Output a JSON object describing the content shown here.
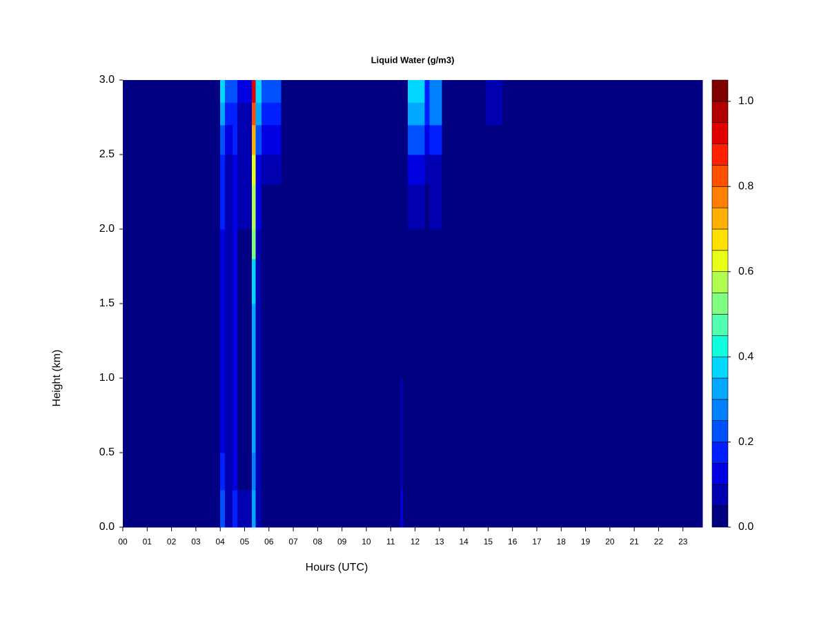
{
  "chart_data": {
    "type": "heatmap",
    "title": "Liquid Water (g/m3)",
    "x_label": "Hours (UTC)",
    "y_label": "Height (km)",
    "x": [
      0,
      4.0,
      4.2,
      4.5,
      4.7,
      5.3,
      5.45,
      5.7,
      6.5,
      11.4,
      11.5,
      11.7,
      12.4,
      12.6,
      13.1,
      14.9,
      15.6
    ],
    "y": [
      0,
      0.25,
      0.5,
      1.0,
      1.5,
      1.8,
      2.0,
      2.3,
      2.5,
      2.7,
      2.85
    ],
    "z": [
      [
        0.02,
        0.2,
        0.08,
        0.15,
        0.05,
        0.3,
        0.08,
        0.04,
        0.02,
        0.1,
        0.02,
        0.02,
        0.02,
        0.02,
        0.02,
        0.02,
        0.02
      ],
      [
        0.02,
        0.15,
        0.06,
        0.12,
        0.04,
        0.25,
        0.06,
        0.03,
        0.02,
        0.08,
        0.02,
        0.02,
        0.02,
        0.02,
        0.02,
        0.02,
        0.02
      ],
      [
        0.02,
        0.12,
        0.05,
        0.1,
        0.04,
        0.3,
        0.05,
        0.03,
        0.02,
        0.08,
        0.02,
        0.02,
        0.02,
        0.02,
        0.02,
        0.02,
        0.02
      ],
      [
        0.02,
        0.12,
        0.05,
        0.1,
        0.04,
        0.3,
        0.05,
        0.03,
        0.02,
        0.02,
        0.02,
        0.02,
        0.02,
        0.02,
        0.02,
        0.02,
        0.02
      ],
      [
        0.02,
        0.12,
        0.05,
        0.1,
        0.04,
        0.35,
        0.06,
        0.03,
        0.02,
        0.02,
        0.02,
        0.02,
        0.02,
        0.02,
        0.02,
        0.02,
        0.02
      ],
      [
        0.02,
        0.13,
        0.05,
        0.1,
        0.04,
        0.5,
        0.08,
        0.03,
        0.02,
        0.02,
        0.02,
        0.02,
        0.02,
        0.02,
        0.02,
        0.02,
        0.02
      ],
      [
        0.02,
        0.15,
        0.06,
        0.12,
        0.05,
        0.55,
        0.1,
        0.04,
        0.02,
        0.02,
        0.02,
        0.06,
        0.04,
        0.05,
        0.02,
        0.02,
        0.02
      ],
      [
        0.02,
        0.18,
        0.08,
        0.14,
        0.05,
        0.6,
        0.12,
        0.06,
        0.02,
        0.02,
        0.02,
        0.1,
        0.06,
        0.08,
        0.02,
        0.02,
        0.02
      ],
      [
        0.02,
        0.22,
        0.1,
        0.15,
        0.06,
        0.7,
        0.2,
        0.12,
        0.02,
        0.02,
        0.02,
        0.2,
        0.12,
        0.18,
        0.02,
        0.02,
        0.02
      ],
      [
        0.02,
        0.3,
        0.15,
        0.18,
        0.08,
        0.85,
        0.3,
        0.18,
        0.02,
        0.02,
        0.02,
        0.3,
        0.15,
        0.25,
        0.02,
        0.05,
        0.02
      ],
      [
        0.02,
        0.38,
        0.2,
        0.2,
        0.1,
        0.95,
        0.35,
        0.2,
        0.02,
        0.02,
        0.02,
        0.35,
        0.18,
        0.28,
        0.02,
        0.07,
        0.02
      ]
    ],
    "xlim": [
      0,
      23.8
    ],
    "ylim": [
      0,
      3
    ],
    "xticks": [
      {
        "value": 0,
        "label": "00"
      },
      {
        "value": 1,
        "label": "01"
      },
      {
        "value": 2,
        "label": "02"
      },
      {
        "value": 3,
        "label": "03"
      },
      {
        "value": 4,
        "label": "04"
      },
      {
        "value": 5,
        "label": "05"
      },
      {
        "value": 6,
        "label": "06"
      },
      {
        "value": 7,
        "label": "07"
      },
      {
        "value": 8,
        "label": "08"
      },
      {
        "value": 9,
        "label": "09"
      },
      {
        "value": 10,
        "label": "10"
      },
      {
        "value": 11,
        "label": "11"
      },
      {
        "value": 12,
        "label": "12"
      },
      {
        "value": 13,
        "label": "13"
      },
      {
        "value": 14,
        "label": "14"
      },
      {
        "value": 15,
        "label": "15"
      },
      {
        "value": 16,
        "label": "16"
      },
      {
        "value": 17,
        "label": "17"
      },
      {
        "value": 18,
        "label": "18"
      },
      {
        "value": 19,
        "label": "19"
      },
      {
        "value": 20,
        "label": "20"
      },
      {
        "value": 21,
        "label": "21"
      },
      {
        "value": 22,
        "label": "22"
      },
      {
        "value": 23,
        "label": "23"
      }
    ],
    "yticks": [
      {
        "value": 0,
        "label": "0.0"
      },
      0.5,
      {
        "value": 1,
        "label": "1.0"
      },
      1.5,
      {
        "value": 2,
        "label": "2.0"
      },
      2.5,
      {
        "value": 3,
        "label": "3.0"
      }
    ],
    "zlim": [
      0,
      1.05
    ],
    "zticks": [
      {
        "value": 0,
        "label": "0.0"
      },
      0.2,
      0.4,
      0.6,
      0.8,
      {
        "value": 1,
        "label": "1.0"
      }
    ],
    "colors": [
      "#000080",
      "#0000B0",
      "#0000E0",
      "#0020FF",
      "#0050FF",
      "#0080FF",
      "#00A8FF",
      "#00D8FF",
      "#10FFE0",
      "#50FFB0",
      "#80FF80",
      "#B0FF50",
      "#E8FF18",
      "#FFE000",
      "#FFB000",
      "#FF8000",
      "#FF5000",
      "#FF2000",
      "#E00000",
      "#B00000",
      "#800000"
    ]
  }
}
